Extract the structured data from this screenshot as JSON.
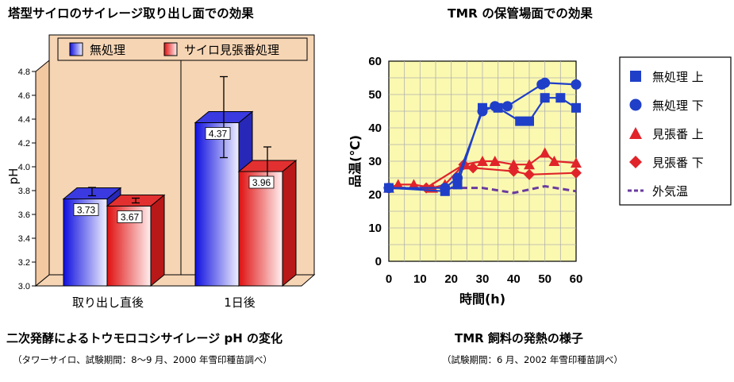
{
  "left": {
    "title": "塔型サイロのサイレージ取り出し面での効果",
    "caption": "二次発酵によるトウモロコシサイレージ pH の変化",
    "subcaption": "（タワーサイロ、試験期間：8〜9 月、2000 年雪印種苗調べ）"
  },
  "right": {
    "title": "TMR の保管場面での効果",
    "caption": "TMR 飼料の発熱の様子",
    "subcaption": "（試験期間：6 月、2002 年雪印種苗調べ）"
  },
  "colors": {
    "untreated": "#1f3fc8",
    "treated": "#e0242a",
    "plot_bg_left": "#f6d5b4",
    "plot_bg_right": "#fbf9b0",
    "outside_air": "#6a3aa0"
  },
  "chart_data": [
    {
      "type": "bar",
      "title": "塔型サイロのサイレージ取り出し面での効果",
      "categories": [
        "取り出し直後",
        "1日後"
      ],
      "series": [
        {
          "name": "無処理",
          "values": [
            3.73,
            4.37
          ],
          "error_low": [
            3.71,
            4.03
          ],
          "error_high": [
            3.78,
            4.71
          ]
        },
        {
          "name": "サイロ見張番処理",
          "values": [
            3.67,
            3.96
          ],
          "error_low": [
            3.65,
            3.8
          ],
          "error_high": [
            3.69,
            4.12
          ]
        }
      ],
      "data_labels": [
        "3.73",
        "3.67",
        "4.37",
        "3.96"
      ],
      "ylabel": "pH",
      "ylim": [
        3.0,
        4.8
      ],
      "yticks": [
        "3.0",
        "3.2",
        "3.4",
        "3.6",
        "3.8",
        "4.0",
        "4.2",
        "4.4",
        "4.6",
        "4.8"
      ],
      "legend_position": "top",
      "grid": false,
      "style": "3d-gradient"
    },
    {
      "type": "line",
      "title": "TMR の保管場面での効果",
      "xlabel": "時間(h)",
      "ylabel": "品温(℃)",
      "xlim": [
        0,
        60
      ],
      "ylim": [
        0,
        60
      ],
      "xticks": [
        "0",
        "10",
        "20",
        "30",
        "40",
        "50",
        "60"
      ],
      "yticks": [
        "0",
        "10",
        "20",
        "30",
        "40",
        "50",
        "60"
      ],
      "grid": true,
      "legend_position": "right",
      "series": [
        {
          "name": "無処理 上",
          "marker": "square",
          "color": "#1f3fc8",
          "x": [
            0,
            18,
            22,
            30,
            35,
            42,
            45,
            50,
            55,
            60
          ],
          "y": [
            22,
            21,
            23,
            46,
            46,
            42,
            42,
            49,
            49,
            46
          ]
        },
        {
          "name": "無処理 下",
          "marker": "circle",
          "color": "#1f3fc8",
          "x": [
            0,
            18,
            22,
            30,
            34,
            38,
            49,
            50,
            60
          ],
          "y": [
            22,
            22,
            25,
            45,
            46.5,
            46.5,
            53,
            53.5,
            53
          ]
        },
        {
          "name": "見張番 上",
          "marker": "triangle",
          "color": "#e0242a",
          "x": [
            0,
            3,
            8,
            14,
            18,
            24,
            30,
            34,
            40,
            45,
            50,
            53,
            60
          ],
          "y": [
            22,
            23,
            23,
            22,
            23,
            29,
            30,
            30,
            29,
            29,
            32.5,
            30,
            29.5
          ]
        },
        {
          "name": "見張番 下",
          "marker": "diamond",
          "color": "#e0242a",
          "x": [
            0,
            12,
            24,
            27,
            40,
            45,
            60
          ],
          "y": [
            22,
            22,
            29,
            28,
            27,
            26,
            26.5
          ]
        },
        {
          "name": "外気温",
          "marker": "none",
          "color": "#6a3aa0",
          "dashed": true,
          "x": [
            0,
            10,
            20,
            30,
            40,
            50,
            60
          ],
          "y": [
            22,
            22,
            22,
            22,
            20.5,
            22.5,
            21
          ]
        }
      ]
    }
  ]
}
